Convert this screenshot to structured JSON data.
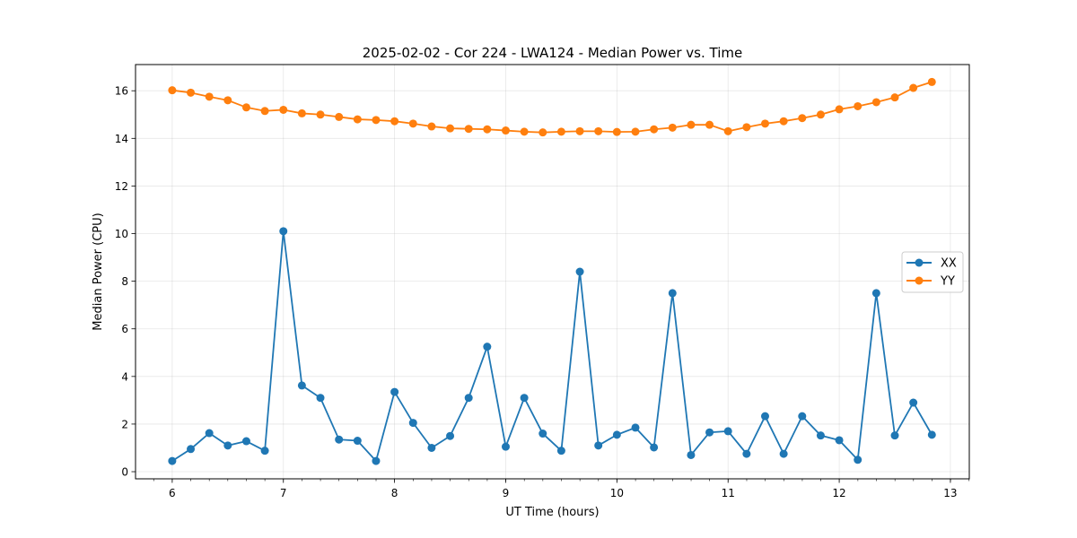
{
  "chart_data": {
    "type": "line",
    "title": "2025-02-02 - Cor 224 - LWA124 - Median Power vs. Time",
    "xlabel": "UT Time (hours)",
    "ylabel": "Median Power (CPU)",
    "xlim": [
      5.67,
      13.17
    ],
    "ylim": [
      -0.3,
      17.1
    ],
    "xticks": [
      6,
      7,
      8,
      9,
      10,
      11,
      12,
      13
    ],
    "yticks": [
      0,
      2,
      4,
      6,
      8,
      10,
      12,
      14,
      16
    ],
    "xticks_minor_step": 0.1667,
    "grid": true,
    "legend_position": "center-right",
    "x": [
      6.0,
      6.1667,
      6.3333,
      6.5,
      6.6667,
      6.8333,
      7.0,
      7.1667,
      7.3333,
      7.5,
      7.6667,
      7.8333,
      8.0,
      8.1667,
      8.3333,
      8.5,
      8.6667,
      8.8333,
      9.0,
      9.1667,
      9.3333,
      9.5,
      9.6667,
      9.8333,
      10.0,
      10.1667,
      10.3333,
      10.5,
      10.6667,
      10.8333,
      11.0,
      11.1667,
      11.3333,
      11.5,
      11.6667,
      11.8333,
      12.0,
      12.1667,
      12.3333,
      12.5,
      12.6667,
      12.8333
    ],
    "series": [
      {
        "name": "XX",
        "color": "#1f77b4",
        "values": [
          0.45,
          0.95,
          1.62,
          1.1,
          1.28,
          0.88,
          10.1,
          3.62,
          3.1,
          1.35,
          1.3,
          0.45,
          3.35,
          2.05,
          1.0,
          1.5,
          3.1,
          5.25,
          1.05,
          3.1,
          1.6,
          0.88,
          8.4,
          1.1,
          1.55,
          1.85,
          1.02,
          7.5,
          0.7,
          1.65,
          1.7,
          0.75,
          2.33,
          0.75,
          2.33,
          1.52,
          1.32,
          0.5,
          7.5,
          1.52,
          2.9,
          1.55
        ]
      },
      {
        "name": "YY",
        "color": "#ff7f0e",
        "values": [
          16.02,
          15.92,
          15.75,
          15.6,
          15.3,
          15.15,
          15.2,
          15.05,
          15.0,
          14.9,
          14.8,
          14.77,
          14.72,
          14.62,
          14.5,
          14.42,
          14.4,
          14.38,
          14.33,
          14.28,
          14.25,
          14.28,
          14.3,
          14.3,
          14.27,
          14.28,
          14.38,
          14.45,
          14.57,
          14.57,
          14.3,
          14.47,
          14.62,
          14.72,
          14.85,
          15.0,
          15.22,
          15.35,
          15.52,
          15.72,
          16.12,
          16.37
        ]
      }
    ]
  }
}
